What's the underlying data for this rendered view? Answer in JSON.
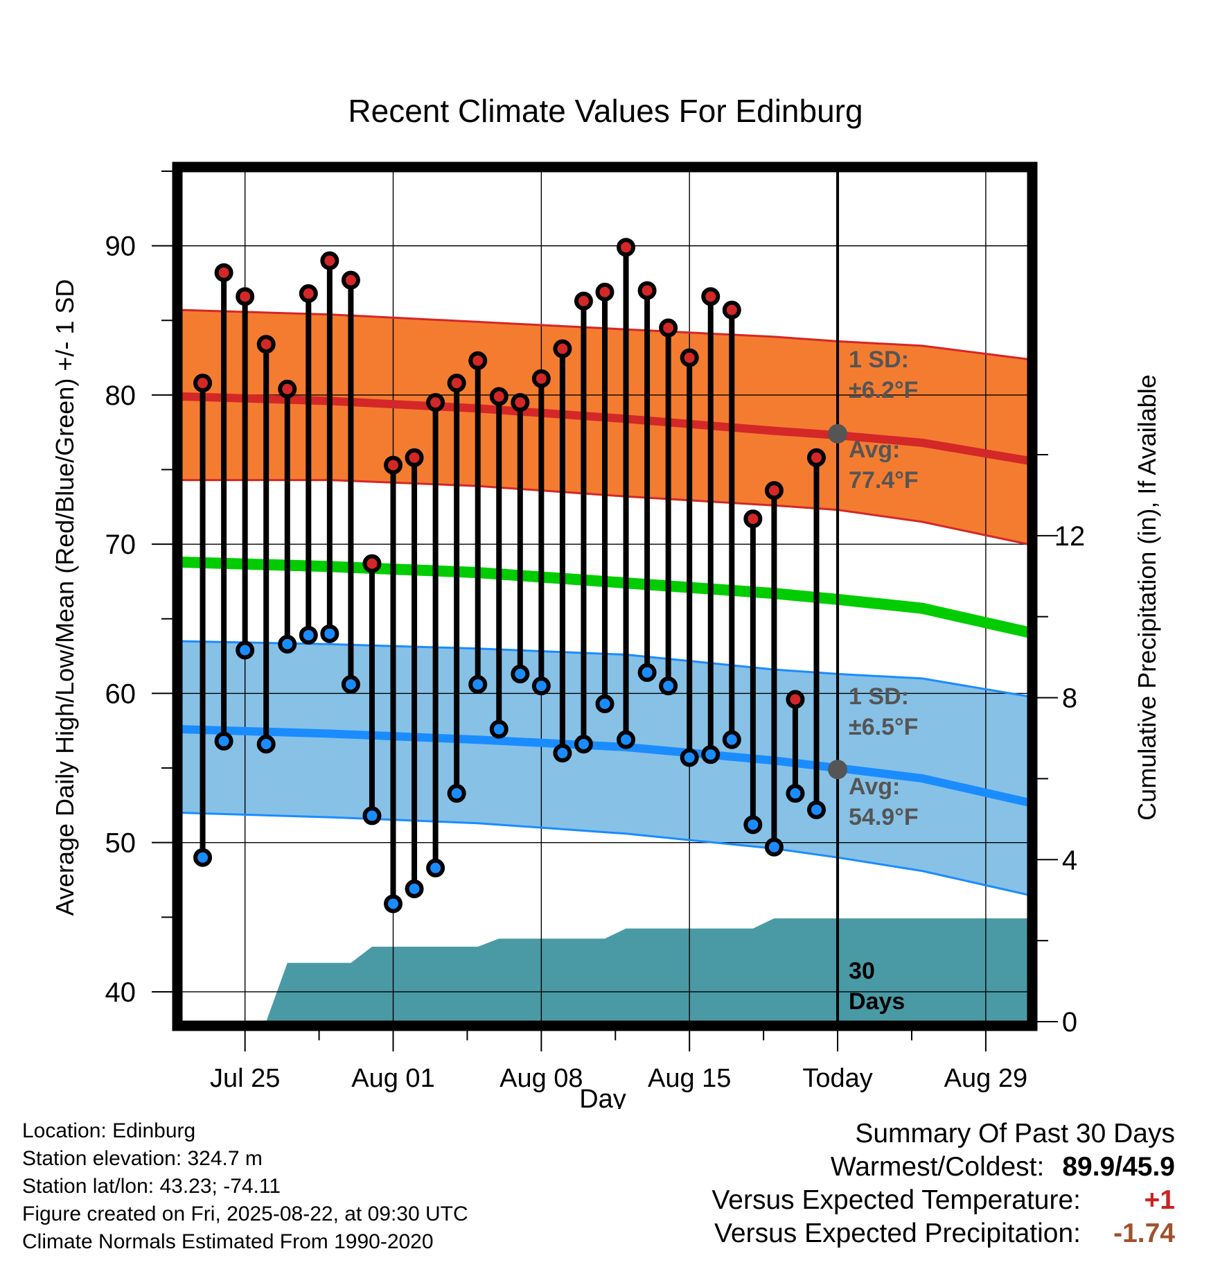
{
  "chart_data": {
    "type": "line",
    "title": "Recent Climate Values For Edinburg",
    "xlabel": "Day",
    "ylabel": "Average Daily High/Low/Mean (Red/Blue/Green) +/- 1 SD",
    "y2label": "Cumulative Precipitation (in), If Available",
    "ylim": [
      38,
      95
    ],
    "y2lim": [
      0,
      21
    ],
    "xlim": [
      "2025-07-22",
      "2025-08-31"
    ],
    "y_ticks": [
      "40",
      "50",
      "60",
      "70",
      "80",
      "90"
    ],
    "y2_ticks": [
      "0",
      "4",
      "8",
      "12"
    ],
    "x_ticks": [
      {
        "date": "2025-07-25",
        "label": "Jul 25"
      },
      {
        "date": "2025-08-01",
        "label": "Aug 01"
      },
      {
        "date": "2025-08-08",
        "label": "Aug 08"
      },
      {
        "date": "2025-08-15",
        "label": "Aug 15"
      },
      {
        "date": "2025-08-22",
        "label": "Today"
      },
      {
        "date": "2025-08-29",
        "label": "Aug 29"
      }
    ],
    "today": "2025-08-22",
    "grid": true,
    "colors": {
      "high_band": "#f47c30",
      "high_band_edge": "#d42727",
      "high_mean": "#d42727",
      "low_band": "#87c1e6",
      "low_band_edge": "#1a8cff",
      "low_mean": "#1a8cff",
      "mean": "#00cc00",
      "precip": "#4a9aa5",
      "high_dot": "#d42727",
      "low_dot": "#1a8cff",
      "avg_marker": "#555555",
      "annotation": "#555555"
    },
    "normals": {
      "dates": [
        "2025-07-22",
        "2025-07-29",
        "2025-08-05",
        "2025-08-12",
        "2025-08-19",
        "2025-08-22",
        "2025-08-26",
        "2025-08-31"
      ],
      "high_mean": [
        79.9,
        79.6,
        79.1,
        78.4,
        77.6,
        77.3,
        76.8,
        75.6
      ],
      "high_upper": [
        85.7,
        85.4,
        84.9,
        84.4,
        83.9,
        83.6,
        83.3,
        82.4
      ],
      "high_lower": [
        74.3,
        74.3,
        73.9,
        73.2,
        72.6,
        72.3,
        71.5,
        70.0
      ],
      "mean": [
        68.8,
        68.5,
        68.1,
        67.4,
        66.7,
        66.3,
        65.7,
        64.1
      ],
      "low_mean": [
        57.6,
        57.3,
        56.9,
        56.4,
        55.5,
        55.0,
        54.3,
        52.7
      ],
      "low_upper": [
        63.5,
        63.3,
        63.0,
        62.6,
        61.6,
        61.3,
        61.0,
        59.8
      ],
      "low_lower": [
        52.0,
        51.7,
        51.3,
        50.6,
        49.6,
        49.0,
        48.1,
        46.5
      ]
    },
    "series": [
      {
        "name": "High",
        "x": [
          "2025-07-23",
          "2025-07-24",
          "2025-07-25",
          "2025-07-26",
          "2025-07-27",
          "2025-07-28",
          "2025-07-29",
          "2025-07-30",
          "2025-07-31",
          "2025-08-01",
          "2025-08-02",
          "2025-08-03",
          "2025-08-04",
          "2025-08-05",
          "2025-08-06",
          "2025-08-07",
          "2025-08-08",
          "2025-08-09",
          "2025-08-10",
          "2025-08-11",
          "2025-08-12",
          "2025-08-13",
          "2025-08-14",
          "2025-08-15",
          "2025-08-16",
          "2025-08-17",
          "2025-08-18",
          "2025-08-19",
          "2025-08-20",
          "2025-08-21"
        ],
        "values": [
          80.8,
          88.2,
          86.6,
          83.4,
          80.4,
          86.8,
          89.0,
          87.7,
          68.7,
          75.3,
          75.8,
          79.5,
          80.8,
          82.3,
          79.9,
          79.5,
          81.1,
          83.1,
          86.3,
          86.9,
          89.9,
          87.0,
          84.5,
          82.5,
          86.6,
          85.7,
          71.7,
          73.6,
          59.6,
          75.8
        ]
      },
      {
        "name": "Low",
        "x": [
          "2025-07-23",
          "2025-07-24",
          "2025-07-25",
          "2025-07-26",
          "2025-07-27",
          "2025-07-28",
          "2025-07-29",
          "2025-07-30",
          "2025-07-31",
          "2025-08-01",
          "2025-08-02",
          "2025-08-03",
          "2025-08-04",
          "2025-08-05",
          "2025-08-06",
          "2025-08-07",
          "2025-08-08",
          "2025-08-09",
          "2025-08-10",
          "2025-08-11",
          "2025-08-12",
          "2025-08-13",
          "2025-08-14",
          "2025-08-15",
          "2025-08-16",
          "2025-08-17",
          "2025-08-18",
          "2025-08-19",
          "2025-08-20",
          "2025-08-21"
        ],
        "values": [
          49.0,
          56.8,
          62.9,
          56.6,
          63.3,
          63.9,
          64.0,
          60.6,
          51.8,
          45.9,
          46.9,
          48.3,
          53.3,
          60.6,
          57.6,
          61.3,
          60.5,
          56.0,
          56.6,
          59.3,
          56.9,
          61.4,
          60.5,
          55.7,
          55.9,
          56.9,
          51.2,
          49.7,
          53.3,
          52.2
        ]
      }
    ],
    "precipitation": {
      "x": [
        "2025-07-26",
        "2025-07-27",
        "2025-07-30",
        "2025-07-31",
        "2025-08-05",
        "2025-08-06",
        "2025-08-11",
        "2025-08-12",
        "2025-08-18",
        "2025-08-19",
        "2025-08-31"
      ],
      "values": [
        0.0,
        1.45,
        1.45,
        1.85,
        1.85,
        2.05,
        2.05,
        2.3,
        2.3,
        2.55,
        2.55
      ]
    },
    "annotations": {
      "high_sd_title": "1 SD:",
      "high_sd_value": "±6.2°F",
      "high_avg_title": "Avg:",
      "high_avg_value": "77.4°F",
      "high_avg": 77.4,
      "low_sd_title": "1 SD:",
      "low_sd_value": "±6.5°F",
      "low_avg_title": "Avg:",
      "low_avg_value": "54.9°F",
      "low_avg": 54.9,
      "precip_days_1": "30",
      "precip_days_2": "Days"
    }
  },
  "footer": {
    "location": "Location: Edinburg",
    "elevation": "Station elevation: 324.7 m",
    "latlon": "Station lat/lon: 43.23; -74.11",
    "created": "Figure created on Fri, 2025-08-22, at 09:30 UTC",
    "normals": "Climate Normals Estimated From 1990-2020"
  },
  "summary": {
    "heading": "Summary Of Past 30 Days",
    "warmest_coldest_label": "Warmest/Coldest:",
    "warmest_coldest_value": "89.9/45.9",
    "temp_label": "Versus Expected Temperature:",
    "temp_value": "+1",
    "temp_color": "#cc2222",
    "precip_label": "Versus Expected Precipitation:",
    "precip_value": "-1.74",
    "precip_color": "#a0522d"
  }
}
